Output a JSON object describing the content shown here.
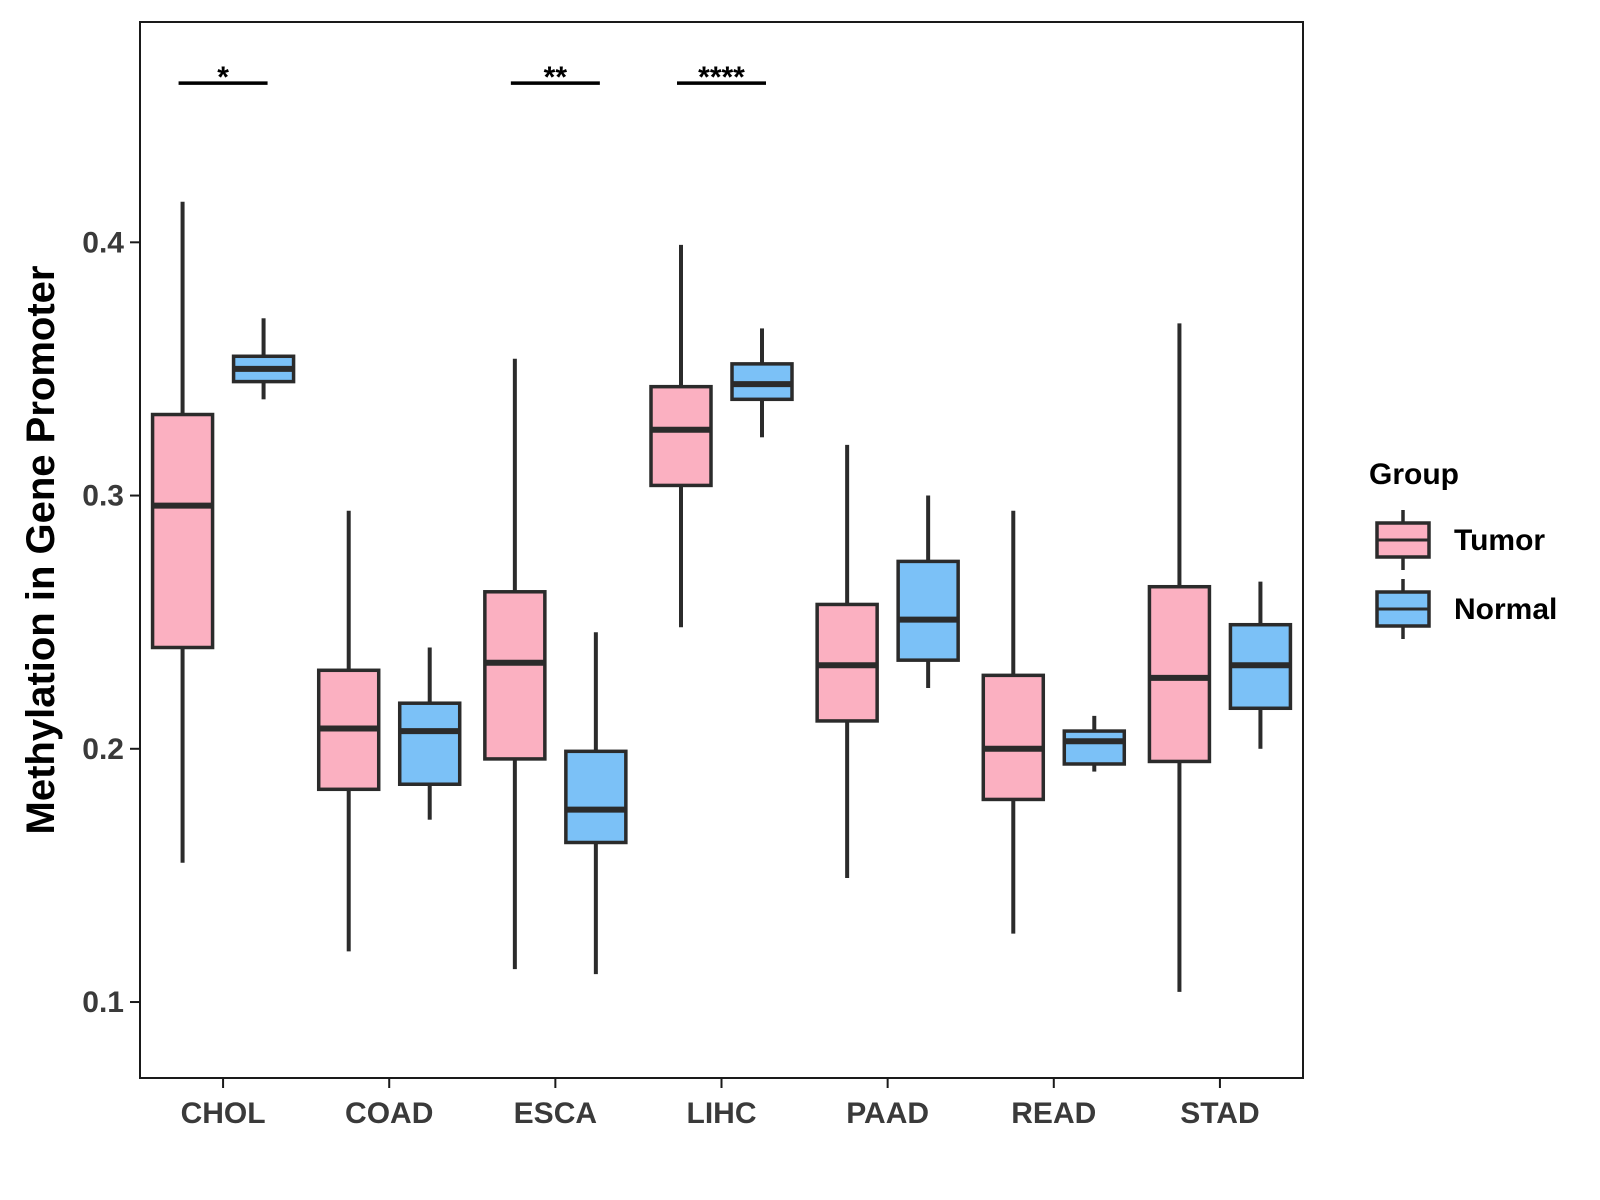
{
  "chart_data": {
    "type": "boxplot",
    "title": "",
    "xlabel": "",
    "ylabel": "Methylation in Gene Promoter",
    "ylim": [
      0.07,
      0.487
    ],
    "yticks": [
      0.1,
      0.2,
      0.3,
      0.4
    ],
    "ytick_labels": [
      "0.1",
      "0.2",
      "0.3",
      "0.4"
    ],
    "categories": [
      "CHOL",
      "COAD",
      "ESCA",
      "LIHC",
      "PAAD",
      "READ",
      "STAD"
    ],
    "legend": {
      "title": "Group",
      "position": "right",
      "entries": [
        {
          "name": "Tumor",
          "color": "#FBB0C1"
        },
        {
          "name": "Normal",
          "color": "#7BC1F7"
        }
      ]
    },
    "series": [
      {
        "name": "Tumor",
        "color": "#FBB0C1",
        "boxes": [
          {
            "min": 0.155,
            "q1": 0.24,
            "median": 0.296,
            "q3": 0.332,
            "max": 0.416
          },
          {
            "min": 0.12,
            "q1": 0.184,
            "median": 0.208,
            "q3": 0.231,
            "max": 0.294
          },
          {
            "min": 0.113,
            "q1": 0.196,
            "median": 0.234,
            "q3": 0.262,
            "max": 0.354
          },
          {
            "min": 0.248,
            "q1": 0.304,
            "median": 0.326,
            "q3": 0.343,
            "max": 0.399
          },
          {
            "min": 0.149,
            "q1": 0.211,
            "median": 0.233,
            "q3": 0.257,
            "max": 0.32
          },
          {
            "min": 0.127,
            "q1": 0.18,
            "median": 0.2,
            "q3": 0.229,
            "max": 0.294
          },
          {
            "min": 0.104,
            "q1": 0.195,
            "median": 0.228,
            "q3": 0.264,
            "max": 0.368
          }
        ]
      },
      {
        "name": "Normal",
        "color": "#7BC1F7",
        "boxes": [
          {
            "min": 0.338,
            "q1": 0.345,
            "median": 0.35,
            "q3": 0.355,
            "max": 0.37
          },
          {
            "min": 0.172,
            "q1": 0.186,
            "median": 0.207,
            "q3": 0.218,
            "max": 0.24
          },
          {
            "min": 0.111,
            "q1": 0.163,
            "median": 0.176,
            "q3": 0.199,
            "max": 0.246
          },
          {
            "min": 0.323,
            "q1": 0.338,
            "median": 0.344,
            "q3": 0.352,
            "max": 0.366
          },
          {
            "min": 0.224,
            "q1": 0.235,
            "median": 0.251,
            "q3": 0.274,
            "max": 0.3
          },
          {
            "min": 0.191,
            "q1": 0.194,
            "median": 0.203,
            "q3": 0.207,
            "max": 0.213
          },
          {
            "min": 0.2,
            "q1": 0.216,
            "median": 0.233,
            "q3": 0.249,
            "max": 0.266
          }
        ]
      }
    ],
    "significance": [
      {
        "category": "CHOL",
        "label": "*",
        "y": 0.466
      },
      {
        "category": "ESCA",
        "label": "**",
        "y": 0.466
      },
      {
        "category": "LIHC",
        "label": "****",
        "y": 0.466
      }
    ]
  }
}
